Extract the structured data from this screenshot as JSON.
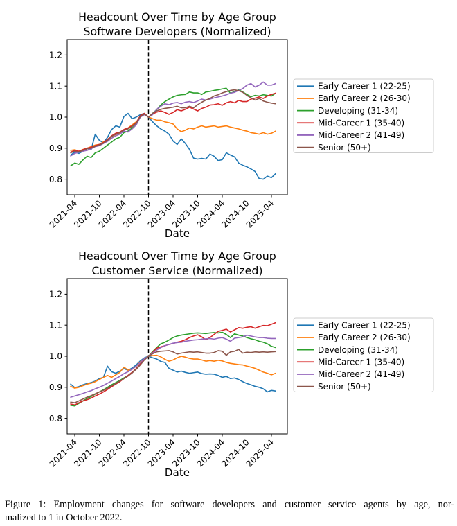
{
  "figure": {
    "caption_line1": "Figure 1: Employment changes for software developers and customer service agents by age, nor-",
    "caption_line2": "malized to 1 in October 2022."
  },
  "chart_data": [
    {
      "type": "line",
      "title": "Headcount Over Time by Age Group",
      "subtitle": "Software Developers (Normalized)",
      "xlabel": "Date",
      "ylabel": "",
      "ylim": [
        0.75,
        1.25
      ],
      "yticks": [
        0.8,
        0.9,
        1.0,
        1.1,
        1.2
      ],
      "ytick_labels": [
        "0.8",
        "0.9",
        "1.0",
        "1.1",
        "1.2"
      ],
      "xtick_labels": [
        "2021-04",
        "2021-10",
        "2022-04",
        "2022-10",
        "2023-04",
        "2023-10",
        "2024-04",
        "2024-10",
        "2025-04"
      ],
      "xtick_months": [
        3,
        9,
        15,
        21,
        27,
        33,
        39,
        45,
        51
      ],
      "month_index_base": "2021-01",
      "x_start_month": 2,
      "normalization_vline_month": 21,
      "normalization_date": "2022-10",
      "grid": false,
      "legend_position": "right",
      "series": [
        {
          "name": "Early Career 1 (22-25)",
          "color": "#1f77b4",
          "values": [
            0.878,
            0.887,
            0.883,
            0.89,
            0.9,
            0.895,
            0.945,
            0.925,
            0.918,
            0.935,
            0.96,
            0.972,
            0.968,
            1.002,
            1.012,
            0.995,
            1.0,
            1.008,
            1.012,
            1.0,
            0.985,
            0.972,
            0.962,
            0.955,
            0.945,
            0.923,
            0.912,
            0.93,
            0.915,
            0.896,
            0.868,
            0.865,
            0.867,
            0.865,
            0.881,
            0.874,
            0.86,
            0.863,
            0.885,
            0.878,
            0.872,
            0.852,
            0.845,
            0.84,
            0.833,
            0.825,
            0.802,
            0.8,
            0.81,
            0.805,
            0.818
          ]
        },
        {
          "name": "Early Career 2 (26-30)",
          "color": "#ff7f0e",
          "values": [
            0.893,
            0.895,
            0.89,
            0.896,
            0.9,
            0.905,
            0.91,
            0.912,
            0.92,
            0.925,
            0.937,
            0.944,
            0.948,
            0.96,
            0.965,
            0.975,
            0.985,
            1.0,
            1.01,
            1.0,
            0.995,
            0.99,
            0.99,
            0.985,
            0.982,
            0.978,
            0.962,
            0.953,
            0.958,
            0.965,
            0.962,
            0.968,
            0.972,
            0.968,
            0.97,
            0.972,
            0.968,
            0.97,
            0.972,
            0.968,
            0.965,
            0.962,
            0.958,
            0.955,
            0.95,
            0.948,
            0.945,
            0.95,
            0.945,
            0.948,
            0.955
          ]
        },
        {
          "name": "Developing (31-34)",
          "color": "#2ca02c",
          "values": [
            0.843,
            0.852,
            0.848,
            0.862,
            0.874,
            0.87,
            0.885,
            0.89,
            0.9,
            0.91,
            0.92,
            0.93,
            0.935,
            0.95,
            0.955,
            0.965,
            0.975,
            1.005,
            1.01,
            1.0,
            1.012,
            1.024,
            1.039,
            1.05,
            1.058,
            1.065,
            1.07,
            1.072,
            1.073,
            1.081,
            1.078,
            1.078,
            1.073,
            1.081,
            1.083,
            1.086,
            1.088,
            1.091,
            1.093,
            1.077,
            1.082,
            1.088,
            1.081,
            1.073,
            1.066,
            1.07,
            1.068,
            1.072,
            1.07,
            1.068,
            1.077
          ]
        },
        {
          "name": "Mid-Career 1 (35-40)",
          "color": "#d62728",
          "values": [
            0.887,
            0.893,
            0.89,
            0.895,
            0.9,
            0.903,
            0.908,
            0.912,
            0.918,
            0.928,
            0.94,
            0.948,
            0.952,
            0.96,
            0.965,
            0.972,
            0.982,
            1.005,
            1.012,
            1.0,
            1.01,
            1.016,
            1.02,
            1.015,
            1.009,
            1.015,
            1.024,
            1.02,
            1.025,
            1.032,
            1.026,
            1.02,
            1.028,
            1.032,
            1.039,
            1.04,
            1.043,
            1.038,
            1.046,
            1.05,
            1.046,
            1.054,
            1.05,
            1.05,
            1.058,
            1.061,
            1.065,
            1.06,
            1.068,
            1.073,
            1.077
          ]
        },
        {
          "name": "Mid-Career 2 (41-49)",
          "color": "#9467bd",
          "values": [
            0.875,
            0.883,
            0.887,
            0.89,
            0.893,
            0.898,
            0.905,
            0.908,
            0.915,
            0.922,
            0.932,
            0.94,
            0.945,
            0.955,
            0.952,
            0.962,
            0.975,
            1.0,
            1.008,
            1.0,
            1.008,
            1.025,
            1.035,
            1.043,
            1.04,
            1.045,
            1.047,
            1.043,
            1.048,
            1.05,
            1.047,
            1.052,
            1.058,
            1.055,
            1.058,
            1.062,
            1.065,
            1.068,
            1.072,
            1.077,
            1.08,
            1.086,
            1.092,
            1.103,
            1.108,
            1.097,
            1.103,
            1.113,
            1.103,
            1.103,
            1.108
          ]
        },
        {
          "name": "Senior (50+)",
          "color": "#8c564b",
          "values": [
            0.885,
            0.89,
            0.888,
            0.893,
            0.898,
            0.9,
            0.906,
            0.91,
            0.916,
            0.925,
            0.938,
            0.945,
            0.95,
            0.958,
            0.962,
            0.97,
            0.98,
            1.002,
            1.01,
            1.0,
            1.012,
            1.02,
            1.025,
            1.028,
            1.03,
            1.032,
            1.035,
            1.03,
            1.03,
            1.035,
            1.03,
            1.04,
            1.048,
            1.055,
            1.06,
            1.068,
            1.072,
            1.078,
            1.082,
            1.086,
            1.088,
            1.085,
            1.08,
            1.07,
            1.062,
            1.055,
            1.06,
            1.052,
            1.048,
            1.045,
            1.043
          ]
        }
      ]
    },
    {
      "type": "line",
      "title": "Headcount Over Time by Age Group",
      "subtitle": "Customer Service (Normalized)",
      "xlabel": "Date",
      "ylabel": "",
      "ylim": [
        0.75,
        1.25
      ],
      "yticks": [
        0.8,
        0.9,
        1.0,
        1.1,
        1.2
      ],
      "ytick_labels": [
        "0.8",
        "0.9",
        "1.0",
        "1.1",
        "1.2"
      ],
      "xtick_labels": [
        "2021-04",
        "2021-10",
        "2022-04",
        "2022-10",
        "2023-04",
        "2023-10",
        "2024-04",
        "2024-10",
        "2025-04"
      ],
      "xtick_months": [
        3,
        9,
        15,
        21,
        27,
        33,
        39,
        45,
        51
      ],
      "month_index_base": "2021-01",
      "x_start_month": 2,
      "normalization_vline_month": 21,
      "normalization_date": "2022-10",
      "grid": false,
      "legend_position": "right",
      "series": [
        {
          "name": "Early Career 1 (22-25)",
          "color": "#1f77b4",
          "values": [
            0.91,
            0.899,
            0.902,
            0.908,
            0.912,
            0.915,
            0.92,
            0.928,
            0.932,
            0.968,
            0.95,
            0.945,
            0.952,
            0.96,
            0.955,
            0.962,
            0.972,
            0.985,
            0.995,
            1.0,
            0.995,
            0.991,
            0.983,
            0.98,
            0.961,
            0.955,
            0.949,
            0.952,
            0.948,
            0.945,
            0.947,
            0.949,
            0.944,
            0.942,
            0.943,
            0.942,
            0.938,
            0.932,
            0.935,
            0.928,
            0.93,
            0.925,
            0.918,
            0.912,
            0.908,
            0.903,
            0.9,
            0.895,
            0.885,
            0.89,
            0.888
          ]
        },
        {
          "name": "Early Career 2 (26-30)",
          "color": "#ff7f0e",
          "values": [
            0.903,
            0.897,
            0.9,
            0.905,
            0.91,
            0.913,
            0.918,
            0.925,
            0.932,
            0.938,
            0.932,
            0.94,
            0.948,
            0.965,
            0.955,
            0.958,
            0.968,
            0.982,
            0.992,
            1.0,
            1.002,
            1.003,
            0.998,
            0.99,
            0.984,
            0.988,
            0.995,
            1.0,
            0.997,
            0.993,
            0.991,
            0.991,
            0.988,
            0.984,
            0.986,
            0.984,
            0.987,
            0.985,
            0.98,
            0.977,
            0.975,
            0.973,
            0.972,
            0.968,
            0.965,
            0.961,
            0.955,
            0.949,
            0.945,
            0.94,
            0.945
          ]
        },
        {
          "name": "Developing (31-34)",
          "color": "#2ca02c",
          "values": [
            0.842,
            0.84,
            0.848,
            0.856,
            0.864,
            0.87,
            0.878,
            0.885,
            0.892,
            0.9,
            0.908,
            0.915,
            0.922,
            0.93,
            0.938,
            0.948,
            0.96,
            0.975,
            0.99,
            1.0,
            1.015,
            1.028,
            1.04,
            1.045,
            1.052,
            1.06,
            1.065,
            1.068,
            1.07,
            1.072,
            1.074,
            1.075,
            1.074,
            1.073,
            1.075,
            1.076,
            1.075,
            1.077,
            1.07,
            1.06,
            1.072,
            1.068,
            1.065,
            1.06,
            1.056,
            1.053,
            1.048,
            1.045,
            1.04,
            1.032,
            1.028
          ]
        },
        {
          "name": "Mid-Career 1 (35-40)",
          "color": "#d62728",
          "values": [
            0.846,
            0.843,
            0.85,
            0.856,
            0.86,
            0.865,
            0.872,
            0.878,
            0.885,
            0.893,
            0.902,
            0.91,
            0.918,
            0.928,
            0.938,
            0.948,
            0.96,
            0.975,
            0.99,
            1.0,
            1.012,
            1.026,
            1.03,
            1.034,
            1.038,
            1.041,
            1.045,
            1.048,
            1.053,
            1.06,
            1.065,
            1.069,
            1.062,
            1.053,
            1.06,
            1.07,
            1.08,
            1.083,
            1.087,
            1.078,
            1.085,
            1.092,
            1.09,
            1.093,
            1.095,
            1.09,
            1.095,
            1.099,
            1.098,
            1.103,
            1.108
          ]
        },
        {
          "name": "Mid-Career 2 (41-49)",
          "color": "#9467bd",
          "values": [
            0.868,
            0.872,
            0.876,
            0.88,
            0.885,
            0.889,
            0.895,
            0.9,
            0.906,
            0.913,
            0.92,
            0.928,
            0.935,
            0.944,
            0.95,
            0.958,
            0.968,
            0.98,
            0.992,
            1.0,
            1.01,
            1.02,
            1.028,
            1.034,
            1.038,
            1.042,
            1.044,
            1.045,
            1.048,
            1.05,
            1.052,
            1.053,
            1.055,
            1.056,
            1.057,
            1.055,
            1.058,
            1.06,
            1.055,
            1.048,
            1.058,
            1.06,
            1.062,
            1.068,
            1.065,
            1.062,
            1.06,
            1.06,
            1.058,
            1.057,
            1.057
          ]
        },
        {
          "name": "Senior (50+)",
          "color": "#8c564b",
          "values": [
            0.852,
            0.85,
            0.856,
            0.862,
            0.868,
            0.873,
            0.879,
            0.885,
            0.89,
            0.897,
            0.905,
            0.912,
            0.92,
            0.928,
            0.936,
            0.946,
            0.958,
            0.972,
            0.988,
            1.0,
            1.008,
            1.014,
            1.016,
            1.017,
            1.018,
            1.014,
            1.007,
            1.01,
            1.012,
            1.014,
            1.013,
            1.014,
            1.012,
            1.01,
            1.01,
            1.012,
            1.018,
            1.016,
            1.003,
            1.014,
            1.016,
            1.022,
            1.01,
            1.013,
            1.012,
            1.014,
            1.013,
            1.014,
            1.013,
            1.014,
            1.015
          ]
        }
      ]
    }
  ]
}
